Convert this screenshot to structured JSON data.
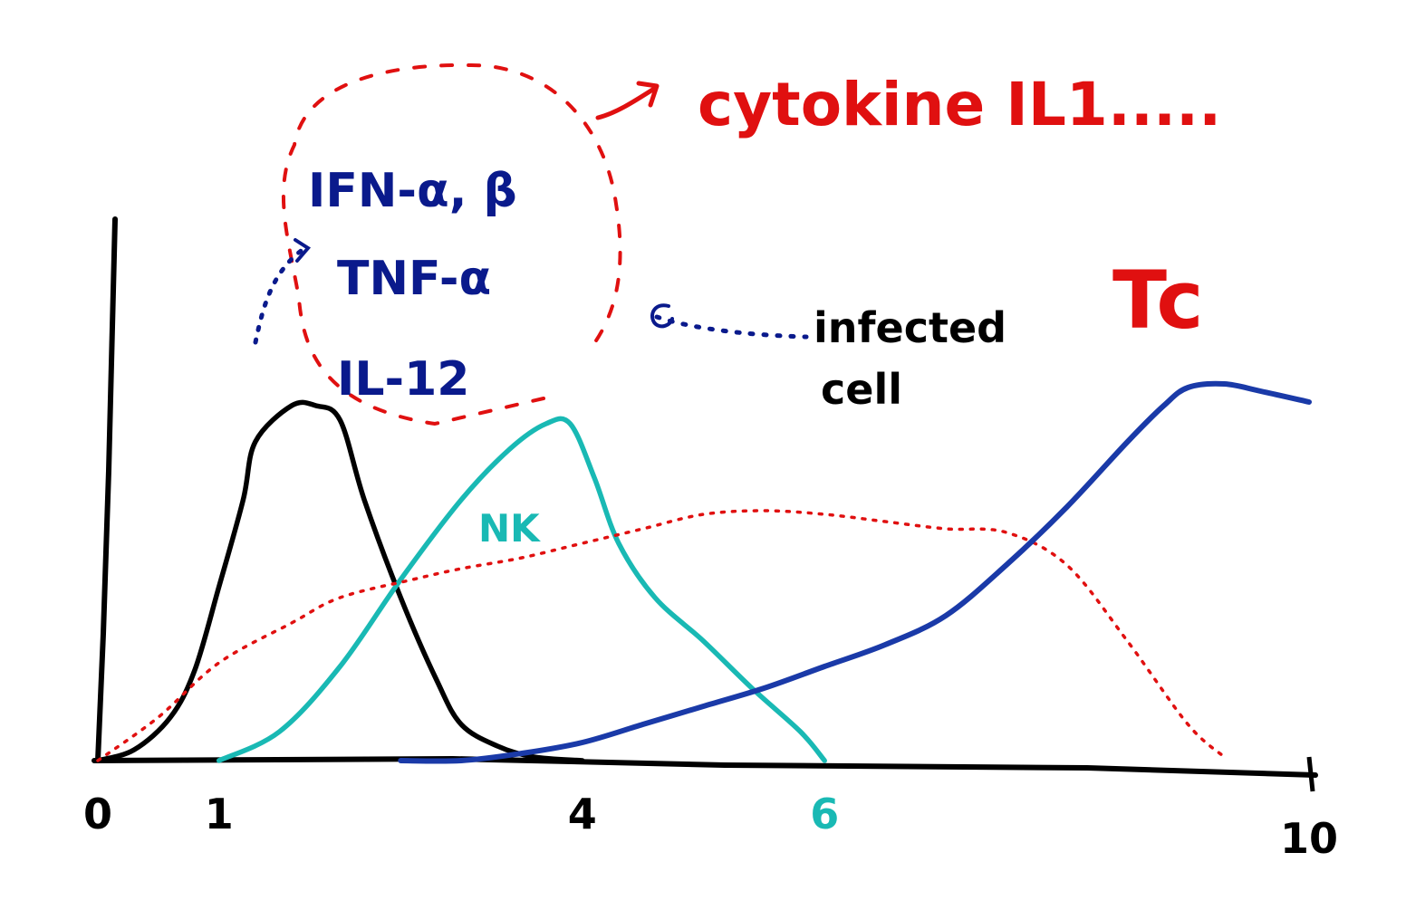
{
  "chart_data": {
    "type": "line",
    "x_ticks": [
      {
        "value": 0,
        "label": "0",
        "color": "#000000"
      },
      {
        "value": 1,
        "label": "1",
        "color": "#000000"
      },
      {
        "value": 4,
        "label": "4",
        "color": "#000000"
      },
      {
        "value": 6,
        "label": "6",
        "color": "#19b9b4"
      },
      {
        "value": 10,
        "label": "10",
        "color": "#000000"
      }
    ],
    "xlim": [
      0,
      10
    ],
    "ylim": [
      0,
      1
    ],
    "grid": false,
    "series": [
      {
        "name": "infected cell",
        "color": "#000000",
        "style": "solid",
        "x": [
          0,
          0.3,
          0.6,
          0.8,
          1.0,
          1.2,
          1.3,
          1.6,
          1.8,
          2.0,
          2.2,
          2.5,
          2.8,
          3.0,
          3.3,
          3.6,
          4.0
        ],
        "y": [
          0,
          0.03,
          0.12,
          0.25,
          0.48,
          0.72,
          0.88,
          0.98,
          0.98,
          0.94,
          0.72,
          0.45,
          0.22,
          0.1,
          0.04,
          0.01,
          0
        ]
      },
      {
        "name": "NK",
        "color": "#19b9b4",
        "style": "solid",
        "x": [
          1.0,
          1.5,
          2.0,
          2.5,
          3.0,
          3.4,
          3.7,
          3.9,
          4.1,
          4.3,
          4.6,
          5.0,
          5.4,
          5.8,
          6.0
        ],
        "y": [
          0,
          0.08,
          0.26,
          0.5,
          0.72,
          0.86,
          0.93,
          0.93,
          0.78,
          0.6,
          0.45,
          0.33,
          0.2,
          0.08,
          0
        ]
      },
      {
        "name": "cytokine IL1.....",
        "color": "#e01010",
        "style": "dotted",
        "x": [
          0,
          0.5,
          1.0,
          1.6,
          2.0,
          2.6,
          3.0,
          3.5,
          4.0,
          4.5,
          5.0,
          5.5,
          6.0,
          6.5,
          7.0,
          7.5,
          8.0,
          8.5,
          9.0,
          9.3
        ],
        "y": [
          0,
          0.12,
          0.27,
          0.38,
          0.45,
          0.5,
          0.53,
          0.56,
          0.6,
          0.64,
          0.68,
          0.69,
          0.68,
          0.66,
          0.64,
          0.63,
          0.54,
          0.33,
          0.1,
          0.01
        ]
      },
      {
        "name": "Tc",
        "color": "#1a3aa8",
        "style": "solid",
        "x": [
          2.5,
          3.0,
          3.5,
          4.0,
          4.5,
          5.0,
          5.5,
          6.0,
          6.5,
          7.0,
          7.5,
          8.0,
          8.5,
          8.8,
          9.0,
          9.3,
          9.6,
          10.0
        ],
        "y": [
          0,
          0,
          0.02,
          0.05,
          0.1,
          0.15,
          0.2,
          0.26,
          0.32,
          0.4,
          0.54,
          0.7,
          0.88,
          0.98,
          1.03,
          1.04,
          1.02,
          0.99
        ]
      }
    ],
    "annotations": {
      "cytokine_list": [
        "IFN-α, β",
        "TNF-α",
        "IL-12"
      ],
      "cytokine_label": "cytokine IL1.....",
      "infected_line1": "infected",
      "infected_line2": "cell",
      "nk_label": "NK",
      "tc_label": "Tc"
    }
  }
}
